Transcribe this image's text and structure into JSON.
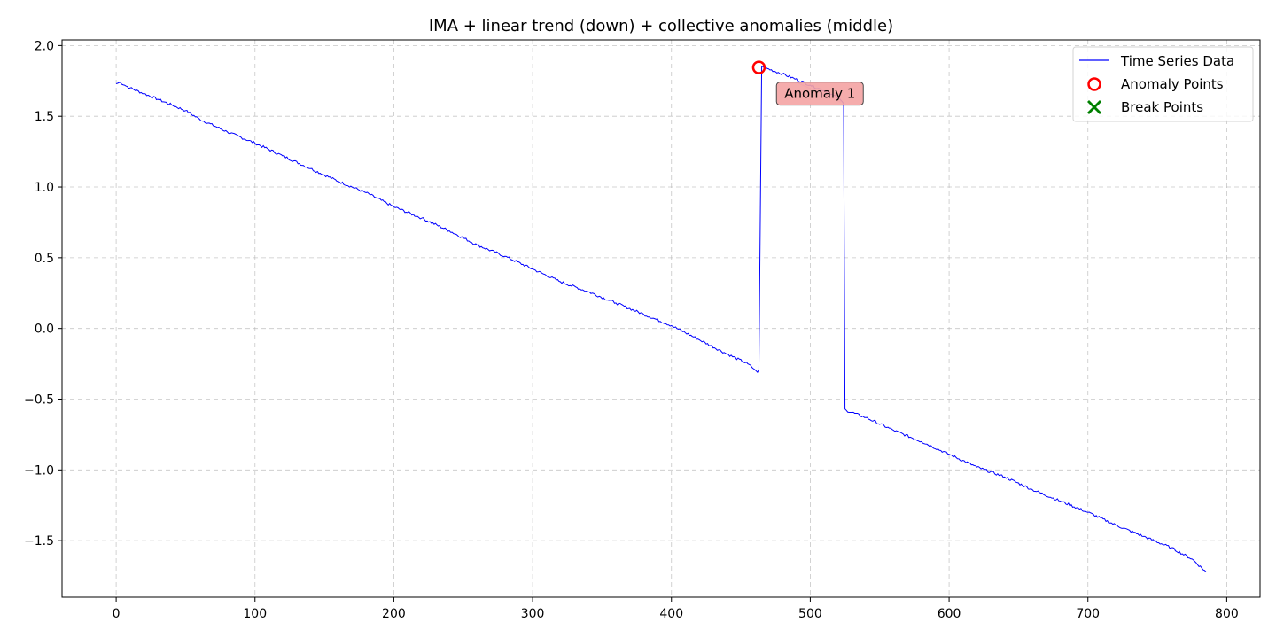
{
  "chart_data": {
    "type": "line",
    "title": "IMA + linear trend (down) + collective anomalies (middle)",
    "xlabel": "",
    "ylabel": "",
    "xlim": [
      -39,
      824
    ],
    "ylim": [
      -1.9,
      2.04
    ],
    "xticks": [
      0,
      100,
      200,
      300,
      400,
      500,
      600,
      700,
      800
    ],
    "xtick_labels": [
      "0",
      "100",
      "200",
      "300",
      "400",
      "500",
      "600",
      "700",
      "800"
    ],
    "yticks": [
      -1.5,
      -1.0,
      -0.5,
      0.0,
      0.5,
      1.0,
      1.5,
      2.0
    ],
    "ytick_labels": [
      "−1.5",
      "−1.0",
      "−0.5",
      "0.0",
      "0.5",
      "1.0",
      "1.5",
      "2.0"
    ],
    "grid": true,
    "legend_position": "top-right",
    "legend": [
      {
        "label": "Time Series Data",
        "kind": "line",
        "color": "#0000ff"
      },
      {
        "label": "Anomaly Points",
        "kind": "circle",
        "color": "#ff0000"
      },
      {
        "label": "Break Points",
        "kind": "x",
        "color": "#008000"
      }
    ],
    "series": [
      {
        "name": "Time Series Data",
        "color": "#0000ff",
        "x": [
          0,
          3,
          6,
          10,
          20,
          30,
          40,
          50,
          60,
          80,
          100,
          120,
          140,
          160,
          180,
          200,
          220,
          240,
          260,
          280,
          300,
          320,
          340,
          360,
          380,
          400,
          420,
          440,
          455,
          460,
          462,
          463,
          465,
          480,
          500,
          510,
          520,
          524,
          525,
          526,
          540,
          560,
          580,
          600,
          620,
          640,
          660,
          680,
          700,
          720,
          740,
          760,
          775,
          785
        ],
        "y": [
          1.73,
          1.74,
          1.72,
          1.7,
          1.66,
          1.62,
          1.58,
          1.54,
          1.48,
          1.39,
          1.31,
          1.22,
          1.13,
          1.04,
          0.96,
          0.86,
          0.78,
          0.69,
          0.59,
          0.51,
          0.42,
          0.33,
          0.26,
          0.18,
          0.1,
          0.02,
          -0.08,
          -0.18,
          -0.25,
          -0.29,
          -0.31,
          -0.29,
          1.85,
          1.8,
          1.72,
          1.68,
          1.63,
          1.59,
          -0.57,
          -0.58,
          -0.63,
          -0.72,
          -0.8,
          -0.89,
          -0.98,
          -1.05,
          -1.14,
          -1.22,
          -1.3,
          -1.39,
          -1.47,
          -1.55,
          -1.63,
          -1.72
        ]
      }
    ],
    "anomaly_points": [
      {
        "x": 463,
        "y": 1.845,
        "color": "#ff0000"
      }
    ],
    "break_points": [],
    "annotations": [
      {
        "text": "Anomaly 1",
        "x": 505,
        "y": 1.66,
        "background": "#f4a4a4"
      }
    ],
    "anomaly_segment": {
      "x": [
        463,
        525
      ],
      "color": "#dd88dd"
    }
  }
}
